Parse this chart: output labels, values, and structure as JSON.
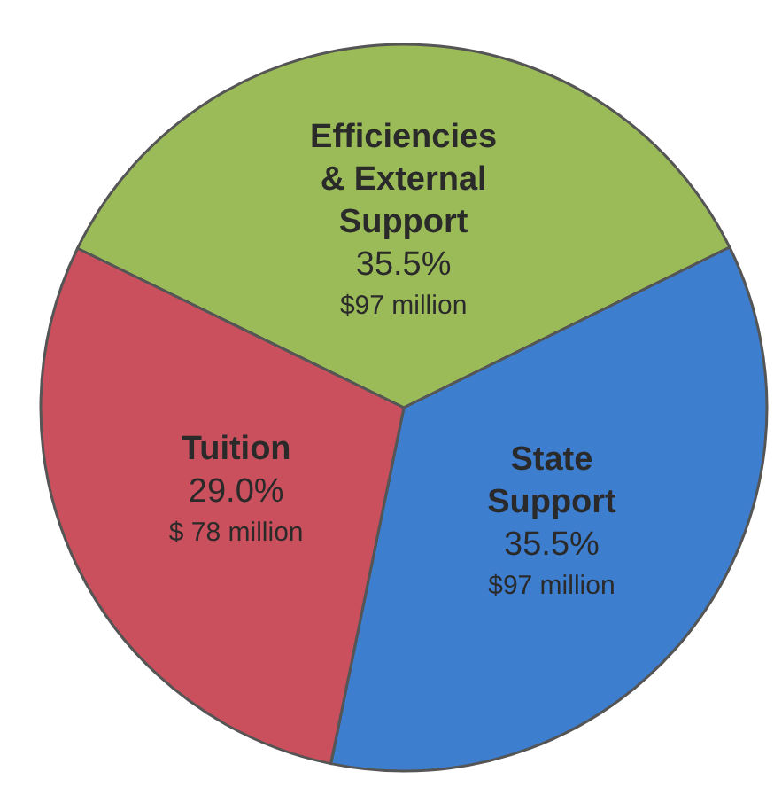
{
  "chart_data": {
    "type": "pie",
    "categories": [
      "Efficiencies & External Support",
      "State Support",
      "Tuition"
    ],
    "values": [
      35.5,
      35.5,
      29.0
    ],
    "colors": [
      "#9bbb59",
      "#3d7ecf",
      "#c9505c"
    ],
    "value_labels": [
      "35.5%",
      "35.5%",
      "29.0%"
    ],
    "annotations": [
      "$97 million",
      "$97 million",
      "$ 78 million"
    ],
    "legend": false
  }
}
